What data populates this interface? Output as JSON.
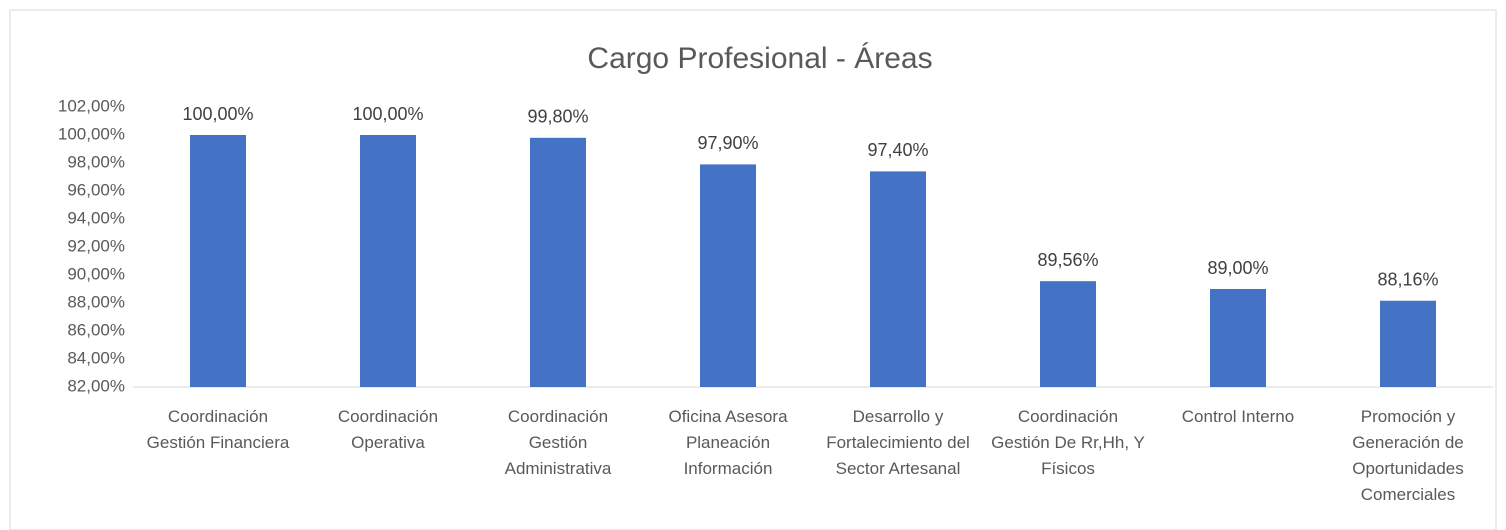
{
  "chart_data": {
    "type": "bar",
    "title": "Cargo Profesional - Áreas",
    "categories": [
      "Coordinación Gestión Financiera",
      "Coordinación Operativa",
      "Coordinación Gestión Administrativa",
      "Oficina Asesora Planeación Información",
      "Desarrollo y Fortalecimiento del Sector Artesanal",
      "Coordinación Gestión De Rr,Hh, Y Físicos",
      "Control Interno",
      "Promoción y Generación de Oportunidades Comerciales"
    ],
    "values": [
      100,
      100,
      99.8,
      97.9,
      97.4,
      89.56,
      89,
      88.16
    ],
    "value_labels": [
      "100,00%",
      "100,00%",
      "99,80%",
      "97,90%",
      "97,40%",
      "89,56%",
      "89,00%",
      "88,16%"
    ],
    "color": "#4472c4",
    "ylim": [
      82,
      102
    ],
    "yticks": [
      {
        "value": 82,
        "label": "82,00%"
      },
      {
        "value": 84,
        "label": "84,00%"
      },
      {
        "value": 86,
        "label": "86,00%"
      },
      {
        "value": 88,
        "label": "88,00%"
      },
      {
        "value": 90,
        "label": "90,00%"
      },
      {
        "value": 92,
        "label": "92,00%"
      },
      {
        "value": 94,
        "label": "94,00%"
      },
      {
        "value": 96,
        "label": "96,00%"
      },
      {
        "value": 98,
        "label": "98,00%"
      },
      {
        "value": 100,
        "label": "100,00%"
      },
      {
        "value": 102,
        "label": "102,00%"
      }
    ],
    "grid": false
  }
}
